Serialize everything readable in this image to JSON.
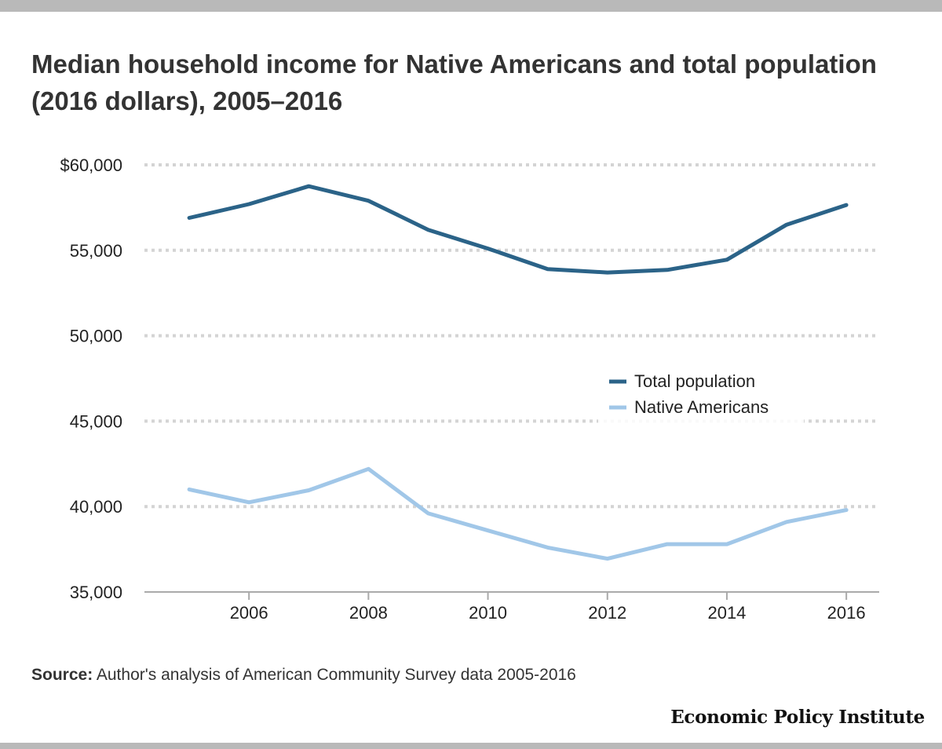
{
  "chart_data": {
    "type": "line",
    "title": "Median household income for Native Americans and total population (2016 dollars), 2005–2016",
    "xlabel": "",
    "ylabel": "",
    "x": [
      2005,
      2006,
      2007,
      2008,
      2009,
      2010,
      2011,
      2012,
      2013,
      2014,
      2015,
      2016
    ],
    "x_ticks": [
      2006,
      2008,
      2010,
      2012,
      2014,
      2016
    ],
    "x_tick_labels": [
      "2006",
      "2008",
      "2010",
      "2012",
      "2014",
      "2016"
    ],
    "xlim": [
      2004.25,
      2016.55
    ],
    "ylim": [
      35000,
      60000
    ],
    "y_ticks": [
      60000,
      55000,
      50000,
      45000,
      40000,
      35000
    ],
    "y_tick_labels": [
      "$60,000",
      "55,000",
      "50,000",
      "45,000",
      "40,000",
      "35,000"
    ],
    "grid": true,
    "legend_position": "center-right",
    "series": [
      {
        "name": "Total population",
        "color": "#2b6388",
        "values": [
          56900,
          57700,
          58750,
          57900,
          56200,
          55100,
          53900,
          53700,
          53850,
          54450,
          56500,
          57650
        ]
      },
      {
        "name": "Native Americans",
        "color": "#a1c7e8",
        "values": [
          41000,
          40250,
          40950,
          42200,
          39600,
          38600,
          37600,
          36950,
          37800,
          37800,
          39100,
          39800
        ]
      }
    ]
  },
  "footer": {
    "source_label": "Source:",
    "source_text": " Author's analysis of American Community Survey data 2005-2016",
    "logo": "Economic Policy Institute"
  },
  "colors": {
    "title": "#333333",
    "grid": "#d4d4d4",
    "axis": "#aaaaaa",
    "tick_label": "#222222",
    "frame": "#b9b9b9"
  }
}
